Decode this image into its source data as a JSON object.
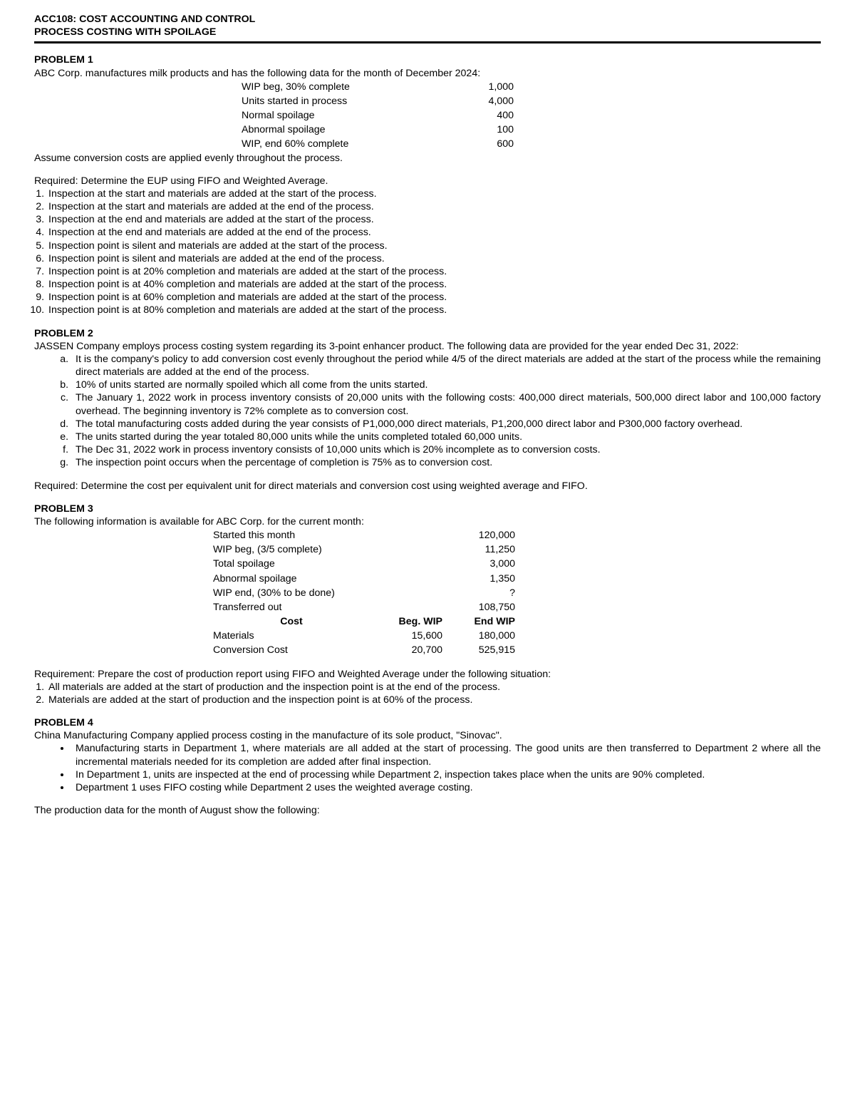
{
  "header": {
    "line1": "ACC108: COST ACCOUNTING AND CONTROL",
    "line2": "PROCESS COSTING WITH SPOILAGE"
  },
  "p1": {
    "title": "PROBLEM 1",
    "intro": "ABC Corp. manufactures milk products and has the following data for the month of December 2024:",
    "rows": [
      {
        "label": "WIP beg, 30% complete",
        "value": "1,000"
      },
      {
        "label": "Units started in process",
        "value": "4,000"
      },
      {
        "label": "Normal spoilage",
        "value": "400"
      },
      {
        "label": "Abnormal spoilage",
        "value": "100"
      },
      {
        "label": "WIP, end 60% complete",
        "value": "600"
      }
    ],
    "assume": "Assume conversion costs are applied evenly throughout the process.",
    "required": "Required: Determine the EUP using FIFO and Weighted Average.",
    "items": [
      "Inspection at the start and materials are added at the start of the process.",
      "Inspection at the start and materials are added at the end of the process.",
      "Inspection at the end and materials are added at the start of the process.",
      "Inspection at the end and materials are added at the end of the process.",
      "Inspection point is silent and materials are added at the start of the process.",
      "Inspection point is silent and materials are added at the end of the process.",
      "Inspection point is at 20% completion and materials are added at the start of the process.",
      "Inspection point is at 40% completion and materials are added at the start of the process.",
      "Inspection point is at 60% completion and materials are added at the start of the process.",
      "Inspection point is at 80% completion and materials are added at the start of the process."
    ]
  },
  "p2": {
    "title": "PROBLEM 2",
    "intro": "JASSEN Company employs process costing system regarding its 3-point enhancer product. The following data are provided for the year ended Dec 31, 2022:",
    "items": [
      "It is the company's policy to add conversion cost evenly throughout the period while 4/5 of the direct materials are added at the start of the process while the remaining direct materials are added at the end of the process.",
      "10% of units started are normally spoiled which all come from the units started.",
      "The January 1, 2022 work in process inventory consists of 20,000 units with the following costs: 400,000 direct materials, 500,000 direct labor and 100,000 factory overhead. The beginning inventory is 72% complete as to conversion cost.",
      "The total manufacturing costs added during the year consists of P1,000,000 direct materials, P1,200,000 direct labor and P300,000 factory overhead.",
      "The units started during the year totaled 80,000 units while the units completed totaled 60,000 units.",
      "The Dec 31, 2022 work in process inventory consists of 10,000 units which is 20% incomplete as to conversion costs.",
      "The inspection point occurs when the percentage of completion is 75% as to conversion cost."
    ],
    "required": "Required: Determine the cost per equivalent unit for direct materials and conversion cost using weighted average and FIFO."
  },
  "p3": {
    "title": "PROBLEM 3",
    "intro": "The following information is available for ABC Corp. for the current month:",
    "rows": [
      {
        "label": "Started this month",
        "v1": "",
        "v2": "120,000"
      },
      {
        "label": "WIP beg, (3/5 complete)",
        "v1": "",
        "v2": "11,250"
      },
      {
        "label": "Total spoilage",
        "v1": "",
        "v2": "3,000"
      },
      {
        "label": "Abnormal spoilage",
        "v1": "",
        "v2": "1,350"
      },
      {
        "label": "WIP end, (30% to be done)",
        "v1": "",
        "v2": "?"
      },
      {
        "label": "Transferred out",
        "v1": "",
        "v2": "108,750"
      }
    ],
    "cost_header": {
      "c0": "Cost",
      "c1": "Beg. WIP",
      "c2": "End WIP"
    },
    "cost_rows": [
      {
        "label": "Materials",
        "v1": "15,600",
        "v2": "180,000"
      },
      {
        "label": "Conversion Cost",
        "v1": "20,700",
        "v2": "525,915"
      }
    ],
    "requirement": "Requirement: Prepare the cost of production report using FIFO and Weighted Average under the following situation:",
    "items": [
      "All materials are added at the start of production and the inspection point is at the end of the process.",
      "Materials are added at the start of production and the inspection point is at 60% of the process."
    ]
  },
  "p4": {
    "title": "PROBLEM 4",
    "intro": "China Manufacturing Company applied process costing in the manufacture of its sole product, \"Sinovac\".",
    "items": [
      "Manufacturing starts in Department 1, where materials are all added at the start of processing. The good units are then transferred to Department 2 where all the incremental materials needed for its completion are added after final inspection.",
      "In Department 1, units are inspected at the end of processing while Department 2, inspection takes place when the units are 90% completed.",
      "Department 1 uses FIFO costing while Department 2 uses the weighted average costing."
    ],
    "closing": "The production data for the month of August show the following:"
  }
}
